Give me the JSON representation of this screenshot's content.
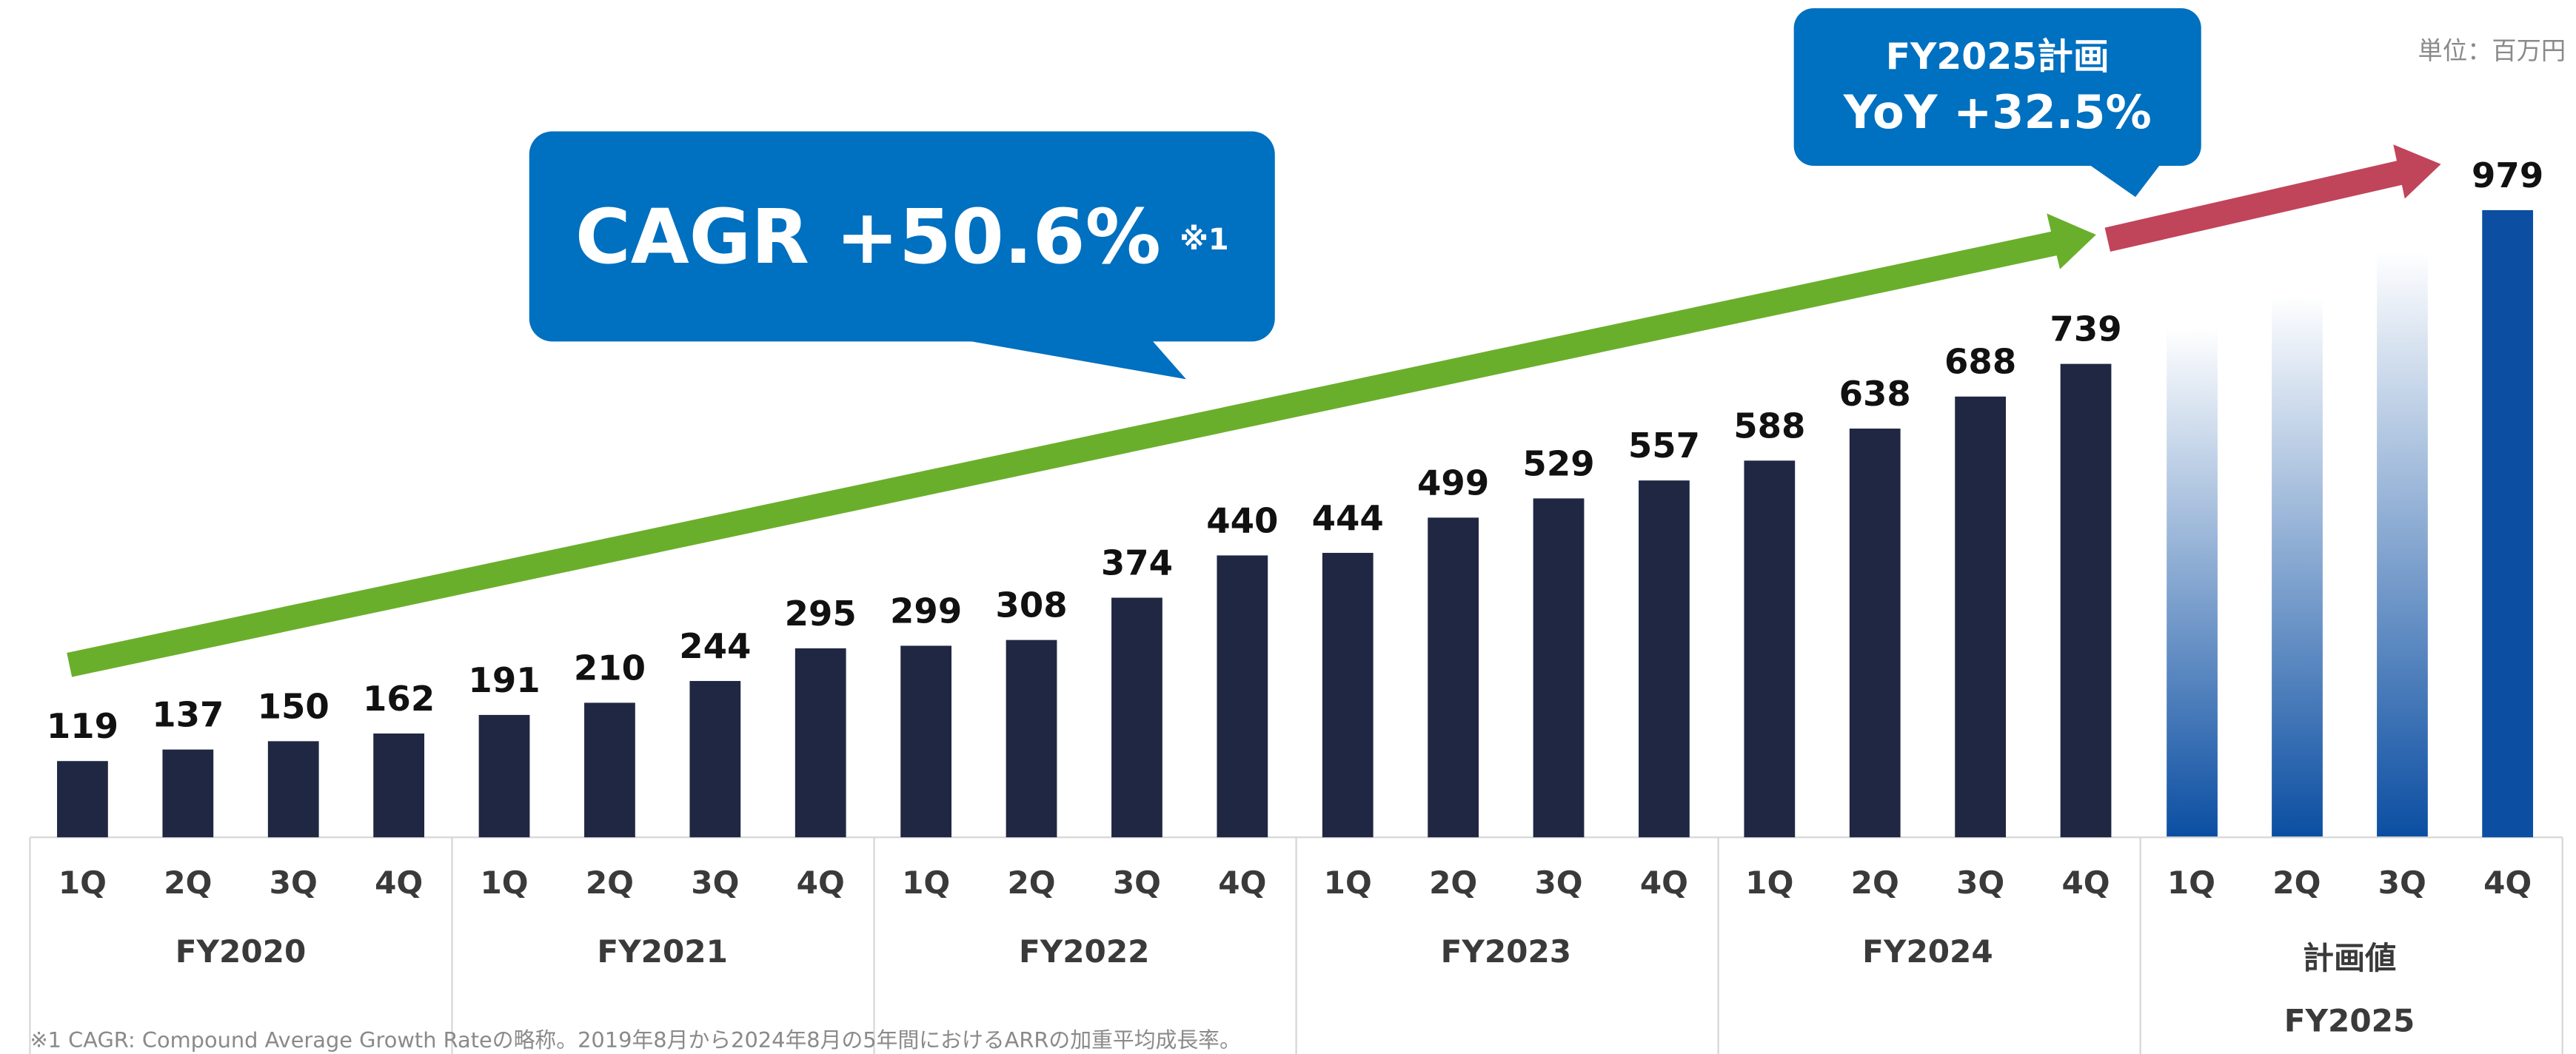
{
  "chart_data": {
    "type": "bar",
    "unit_label": "単位：百万円",
    "categories": [
      "1Q",
      "2Q",
      "3Q",
      "4Q",
      "1Q",
      "2Q",
      "3Q",
      "4Q",
      "1Q",
      "2Q",
      "3Q",
      "4Q",
      "1Q",
      "2Q",
      "3Q",
      "4Q",
      "1Q",
      "2Q",
      "3Q",
      "4Q",
      "1Q",
      "2Q",
      "3Q",
      "4Q"
    ],
    "values": [
      119,
      137,
      150,
      162,
      191,
      210,
      244,
      295,
      299,
      308,
      374,
      440,
      444,
      499,
      529,
      557,
      588,
      638,
      688,
      739,
      null,
      null,
      null,
      979
    ],
    "colors": [
      "#1f2742",
      "#1f2742",
      "#1f2742",
      "#1f2742",
      "#1f2742",
      "#1f2742",
      "#1f2742",
      "#1f2742",
      "#1f2742",
      "#1f2742",
      "#1f2742",
      "#1f2742",
      "#1f2742",
      "#1f2742",
      "#1f2742",
      "#1f2742",
      "#1f2742",
      "#1f2742",
      "#1f2742",
      "#1f2742",
      null,
      null,
      null,
      "#0b4ea2"
    ],
    "groups": [
      "FY2020",
      "FY2021",
      "FY2022",
      "FY2023",
      "FY2024",
      "FY2025"
    ],
    "plan_label": "計画値",
    "annotations": {
      "cagr": "CAGR +50.6%",
      "cagr_note": "※1",
      "plan_title": "FY2025計画",
      "plan_yoy": "YoY +32.5%"
    },
    "footnote": "※1 CAGR: Compound Average Growth Rateの略称。2019年8月から2024年8月の5年間におけるARRの加重平均成長率。"
  }
}
